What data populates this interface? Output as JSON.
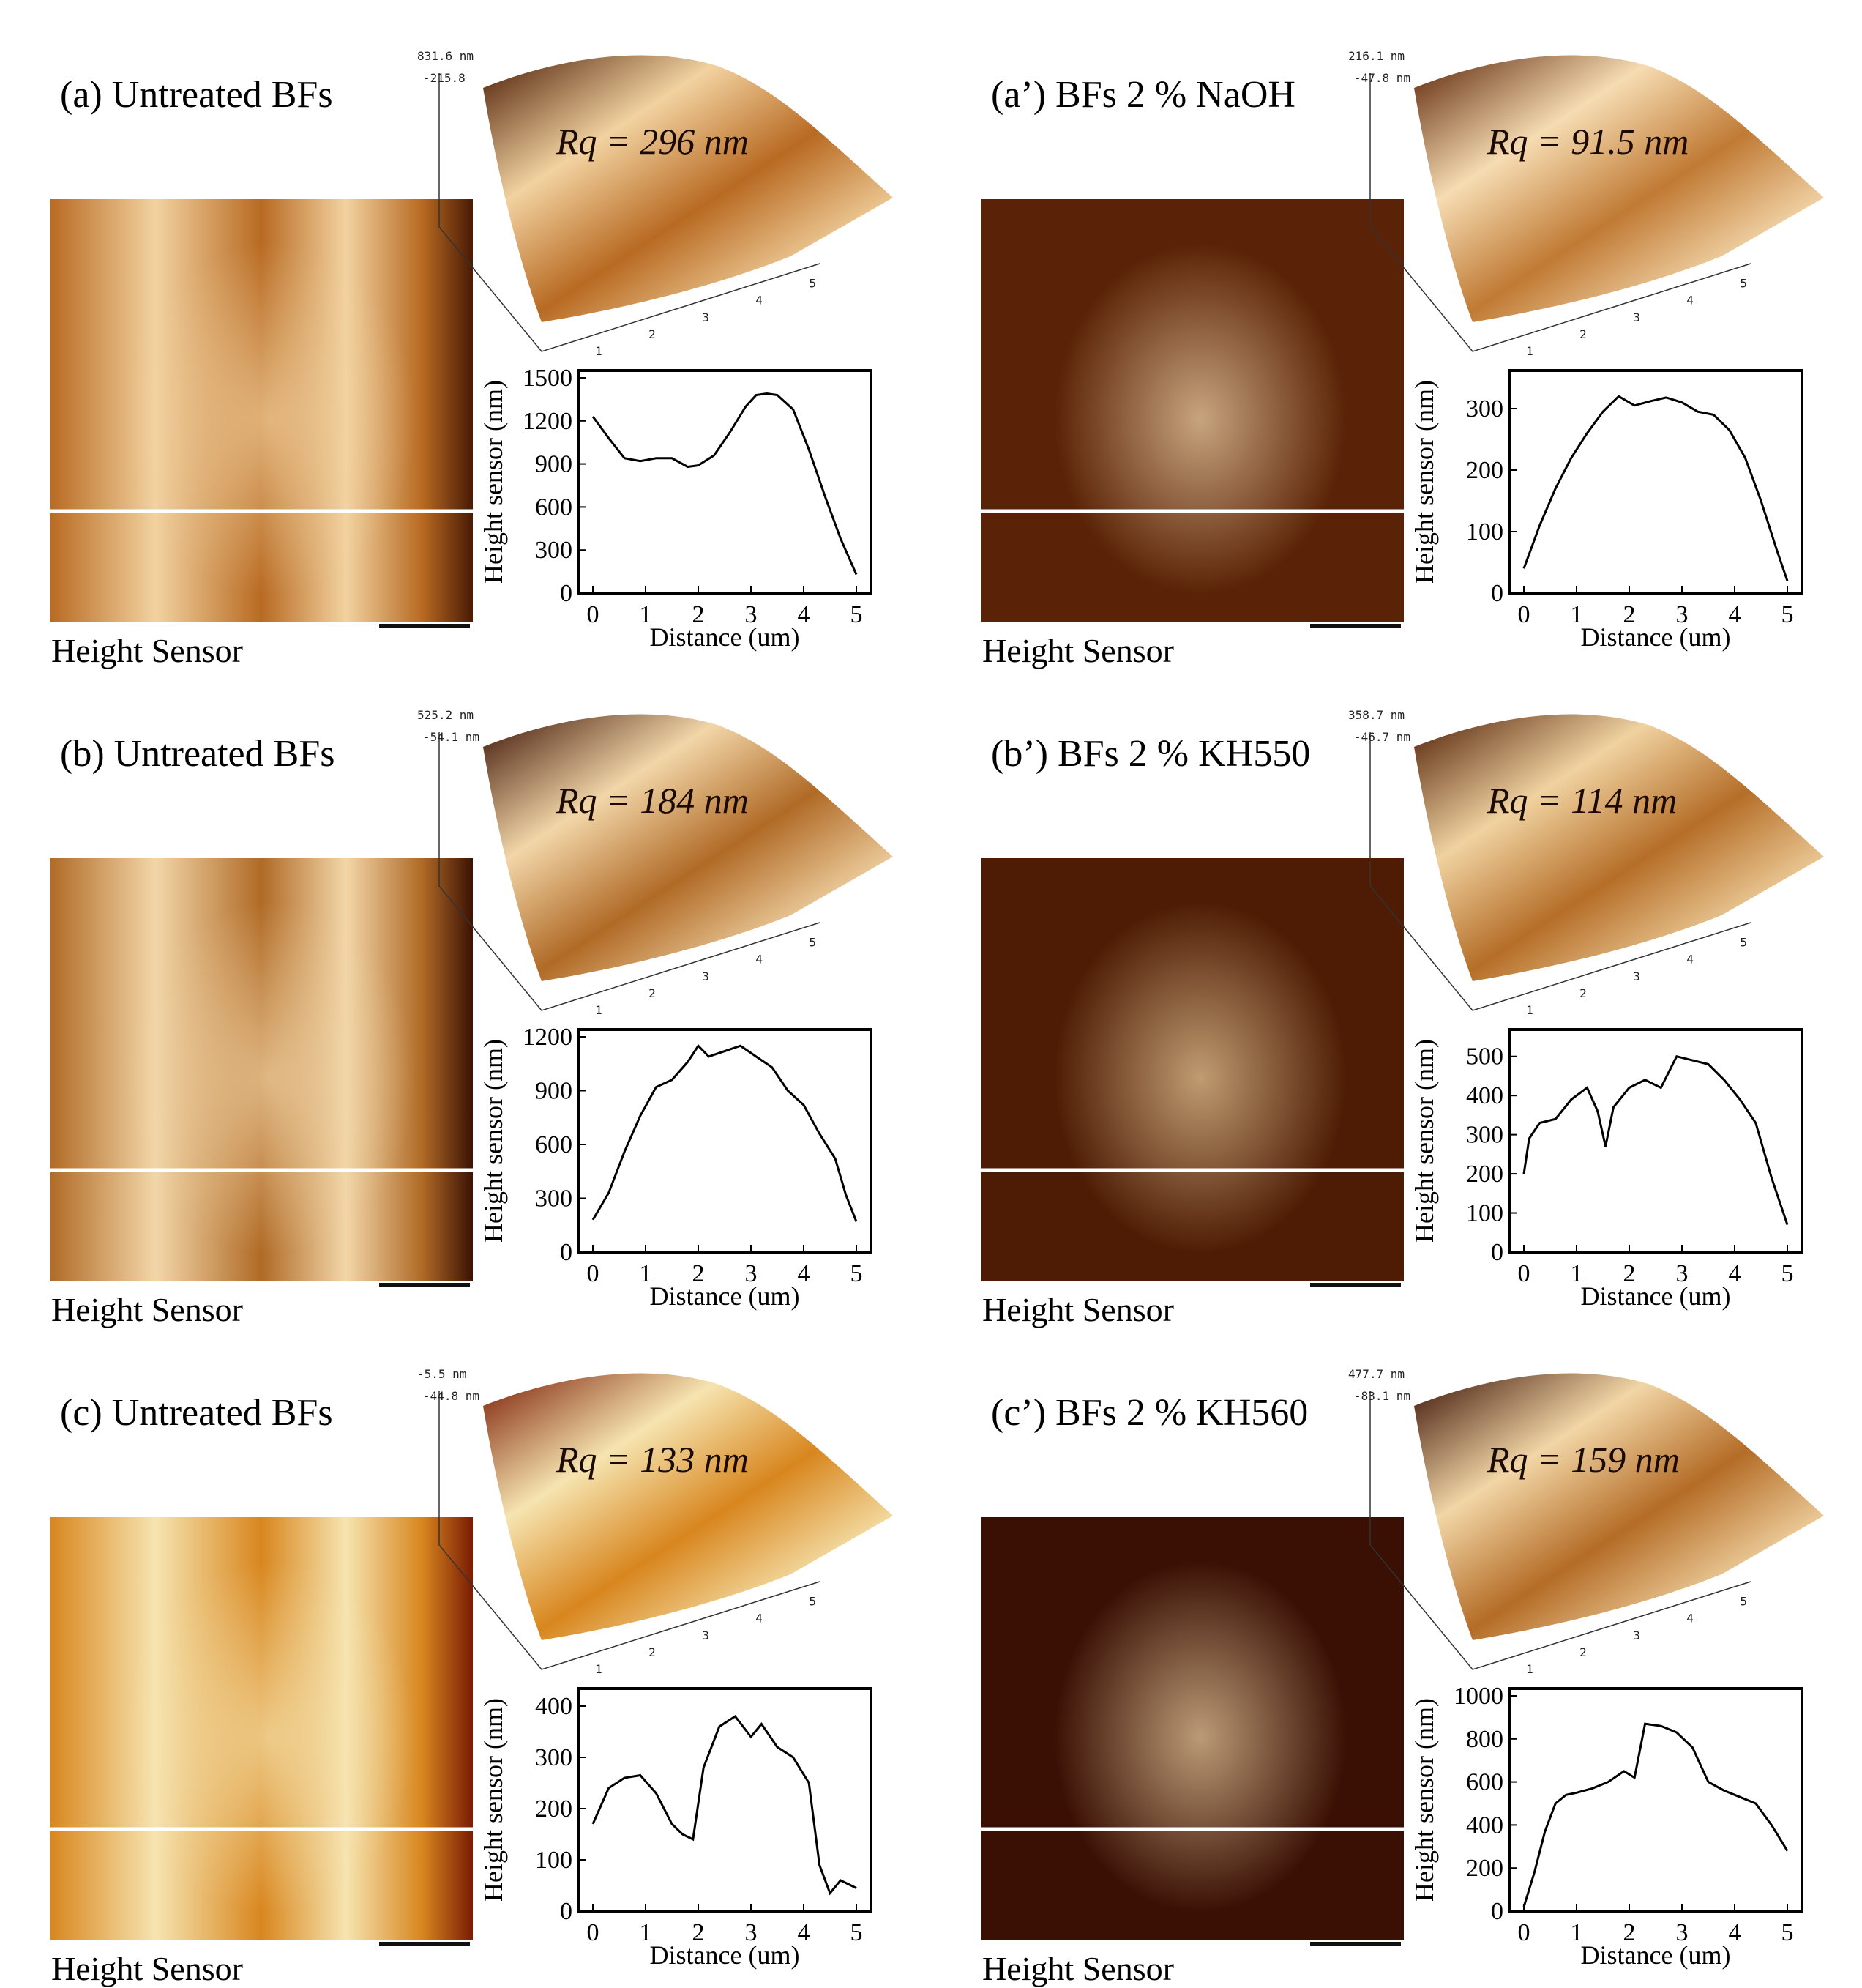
{
  "panels": [
    {
      "id": "a",
      "label": "(a) Untreated BFs",
      "rq": "Rq = 296 nm",
      "zmax": "831.6 nm",
      "zmin": "-215.8",
      "caption": "Height Sensor",
      "colors": {
        "dark": "#4a1a04",
        "mid": "#b86a22",
        "light": "#f2d2a0"
      },
      "chart_data": {
        "type": "line",
        "xlabel": "Distance (um)",
        "ylabel": "Height sensor (nm)",
        "xlim": [
          0,
          5
        ],
        "ylim": [
          0,
          1500
        ],
        "xticks": [
          0,
          1,
          2,
          3,
          4,
          5
        ],
        "yticks": [
          0,
          300,
          600,
          900,
          1200,
          1500
        ],
        "x": [
          0,
          0.3,
          0.6,
          0.9,
          1.2,
          1.5,
          1.8,
          2.0,
          2.3,
          2.6,
          2.9,
          3.1,
          3.3,
          3.5,
          3.8,
          4.1,
          4.4,
          4.7,
          5.0
        ],
        "y": [
          1230,
          1080,
          940,
          920,
          940,
          940,
          880,
          890,
          960,
          1120,
          1300,
          1380,
          1390,
          1380,
          1280,
          1000,
          680,
          380,
          130
        ]
      }
    },
    {
      "id": "a2",
      "label": "(a’) BFs 2 % NaOH",
      "rq": "Rq = 91.5 nm",
      "zmax": "216.1 nm",
      "zmin": "-47.8 nm",
      "caption": "Height Sensor",
      "colors": {
        "dark": "#5a2206",
        "mid": "#c07a34",
        "light": "#f6dcb2"
      },
      "chart_data": {
        "type": "line",
        "xlabel": "Distance (um)",
        "ylabel": "Height sensor (nm)",
        "xlim": [
          0,
          5
        ],
        "ylim": [
          0,
          350
        ],
        "xticks": [
          0,
          1,
          2,
          3,
          4,
          5
        ],
        "yticks": [
          0,
          100,
          200,
          300
        ],
        "x": [
          0,
          0.3,
          0.6,
          0.9,
          1.2,
          1.5,
          1.8,
          2.1,
          2.4,
          2.7,
          3.0,
          3.3,
          3.6,
          3.9,
          4.2,
          4.5,
          4.8,
          5.0
        ],
        "y": [
          40,
          110,
          170,
          220,
          260,
          295,
          320,
          305,
          312,
          318,
          310,
          295,
          290,
          265,
          220,
          150,
          70,
          20
        ]
      }
    },
    {
      "id": "b",
      "label": "(b) Untreated BFs",
      "rq": "Rq = 184 nm",
      "zmax": "525.2 nm",
      "zmin": "-54.1 nm",
      "caption": "Height Sensor",
      "colors": {
        "dark": "#3c1204",
        "mid": "#b06a26",
        "light": "#f2d6a8"
      },
      "chart_data": {
        "type": "line",
        "xlabel": "Distance (um)",
        "ylabel": "Height sensor (nm)",
        "xlim": [
          0,
          5
        ],
        "ylim": [
          0,
          1200
        ],
        "xticks": [
          0,
          1,
          2,
          3,
          4,
          5
        ],
        "yticks": [
          0,
          300,
          600,
          900,
          1200
        ],
        "x": [
          0,
          0.3,
          0.6,
          0.9,
          1.2,
          1.5,
          1.8,
          2.0,
          2.2,
          2.5,
          2.8,
          3.1,
          3.4,
          3.7,
          4.0,
          4.3,
          4.6,
          4.8,
          5.0
        ],
        "y": [
          180,
          330,
          560,
          760,
          920,
          960,
          1060,
          1150,
          1090,
          1120,
          1150,
          1090,
          1030,
          900,
          820,
          660,
          520,
          320,
          170
        ]
      }
    },
    {
      "id": "b2",
      "label": "(b’) BFs 2 % KH550",
      "rq": "Rq = 114 nm",
      "zmax": "358.7 nm",
      "zmin": "-46.7 nm",
      "caption": "Height Sensor",
      "colors": {
        "dark": "#4e1c04",
        "mid": "#b56e28",
        "light": "#f0d2a0"
      },
      "chart_data": {
        "type": "line",
        "xlabel": "Distance (um)",
        "ylabel": "Height sensor (nm)",
        "xlim": [
          0,
          5
        ],
        "ylim": [
          0,
          550
        ],
        "xticks": [
          0,
          1,
          2,
          3,
          4,
          5
        ],
        "yticks": [
          0,
          100,
          200,
          300,
          400,
          500
        ],
        "x": [
          0,
          0.1,
          0.3,
          0.6,
          0.9,
          1.2,
          1.4,
          1.55,
          1.7,
          2.0,
          2.3,
          2.6,
          2.9,
          3.2,
          3.5,
          3.8,
          4.1,
          4.4,
          4.7,
          5.0
        ],
        "y": [
          200,
          290,
          330,
          340,
          390,
          420,
          360,
          270,
          370,
          420,
          440,
          420,
          500,
          490,
          480,
          440,
          390,
          330,
          190,
          70
        ]
      }
    },
    {
      "id": "c",
      "label": "(c) Untreated BFs",
      "rq": "Rq = 133 nm",
      "zmax": "-5.5 nm",
      "zmin": "-44.8 nm",
      "caption": "Height Sensor",
      "colors": {
        "dark": "#7a1c04",
        "mid": "#d8861e",
        "light": "#f6e4b0"
      },
      "chart_data": {
        "type": "line",
        "xlabel": "Distance (um)",
        "ylabel": "Height sensor (nm)",
        "xlim": [
          0,
          5
        ],
        "ylim": [
          0,
          420
        ],
        "xticks": [
          0,
          1,
          2,
          3,
          4,
          5
        ],
        "yticks": [
          0,
          100,
          200,
          300,
          400
        ],
        "x": [
          0,
          0.3,
          0.6,
          0.9,
          1.2,
          1.5,
          1.7,
          1.9,
          2.1,
          2.4,
          2.7,
          3.0,
          3.2,
          3.5,
          3.8,
          4.1,
          4.3,
          4.5,
          4.7,
          5.0
        ],
        "y": [
          170,
          240,
          260,
          265,
          230,
          170,
          150,
          140,
          280,
          360,
          380,
          340,
          365,
          320,
          300,
          250,
          90,
          35,
          60,
          45
        ]
      }
    },
    {
      "id": "c2",
      "label": "(c’) BFs 2 % KH560",
      "rq": "Rq = 159 nm",
      "zmax": "477.7 nm",
      "zmin": "-83.1 nm",
      "caption": "Height Sensor",
      "colors": {
        "dark": "#3a1004",
        "mid": "#b46c26",
        "light": "#f2d6a6"
      },
      "chart_data": {
        "type": "line",
        "xlabel": "Distance (um)",
        "ylabel": "Height sensor (nm)",
        "xlim": [
          0,
          5
        ],
        "ylim": [
          0,
          1000
        ],
        "xticks": [
          0,
          1,
          2,
          3,
          4,
          5
        ],
        "yticks": [
          0,
          200,
          400,
          600,
          800,
          1000
        ],
        "x": [
          0,
          0.2,
          0.4,
          0.6,
          0.8,
          1.0,
          1.3,
          1.6,
          1.9,
          2.1,
          2.3,
          2.6,
          2.9,
          3.2,
          3.5,
          3.8,
          4.1,
          4.4,
          4.7,
          5.0
        ],
        "y": [
          20,
          180,
          370,
          500,
          540,
          550,
          570,
          600,
          650,
          620,
          870,
          860,
          830,
          760,
          600,
          560,
          530,
          500,
          400,
          280
        ]
      }
    }
  ]
}
